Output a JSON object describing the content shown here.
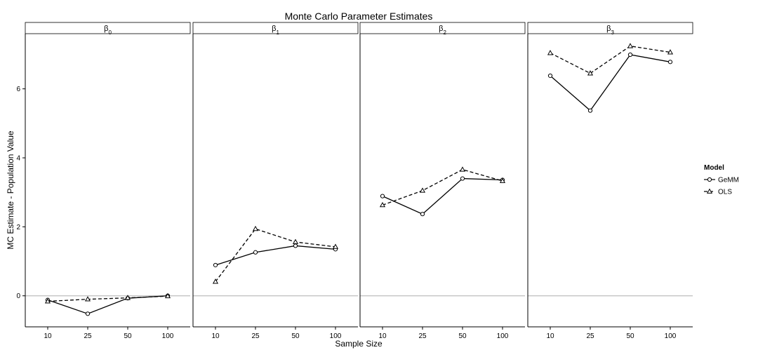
{
  "chart_data": {
    "type": "line",
    "title": "Monte Carlo Parameter Estimates",
    "xlabel": "Sample Size",
    "ylabel": "MC Estimate - Population Value",
    "categories": [
      "10",
      "25",
      "50",
      "100"
    ],
    "ylim": [
      -0.9,
      7.6
    ],
    "yticks": [
      0,
      2,
      4,
      6
    ],
    "reference_line": 0,
    "legend": {
      "title": "Model",
      "position": "right",
      "entries": [
        "GeMM",
        "OLS"
      ]
    },
    "facets": [
      {
        "label_base": "β",
        "label_sub": "0",
        "series": [
          {
            "name": "GeMM",
            "line": "solid",
            "marker": "circle",
            "values": [
              -0.12,
              -0.52,
              -0.07,
              0.0
            ]
          },
          {
            "name": "OLS",
            "line": "dashed",
            "marker": "triangle",
            "values": [
              -0.16,
              -0.1,
              -0.06,
              -0.01
            ]
          }
        ]
      },
      {
        "label_base": "β",
        "label_sub": "1",
        "series": [
          {
            "name": "GeMM",
            "line": "solid",
            "marker": "circle",
            "values": [
              0.89,
              1.26,
              1.45,
              1.35
            ]
          },
          {
            "name": "OLS",
            "line": "dashed",
            "marker": "triangle",
            "values": [
              0.41,
              1.94,
              1.56,
              1.42
            ]
          }
        ]
      },
      {
        "label_base": "β",
        "label_sub": "2",
        "series": [
          {
            "name": "GeMM",
            "line": "solid",
            "marker": "circle",
            "values": [
              2.89,
              2.37,
              3.4,
              3.36
            ]
          },
          {
            "name": "OLS",
            "line": "dashed",
            "marker": "triangle",
            "values": [
              2.63,
              3.05,
              3.66,
              3.33
            ]
          }
        ]
      },
      {
        "label_base": "β",
        "label_sub": "3",
        "series": [
          {
            "name": "GeMM",
            "line": "solid",
            "marker": "circle",
            "values": [
              6.38,
              5.37,
              6.99,
              6.78
            ]
          },
          {
            "name": "OLS",
            "line": "dashed",
            "marker": "triangle",
            "values": [
              7.04,
              6.45,
              7.24,
              7.06
            ]
          }
        ]
      }
    ],
    "colors": {
      "line": "#000000",
      "reference": "#bdbdbd"
    },
    "grid": false
  }
}
